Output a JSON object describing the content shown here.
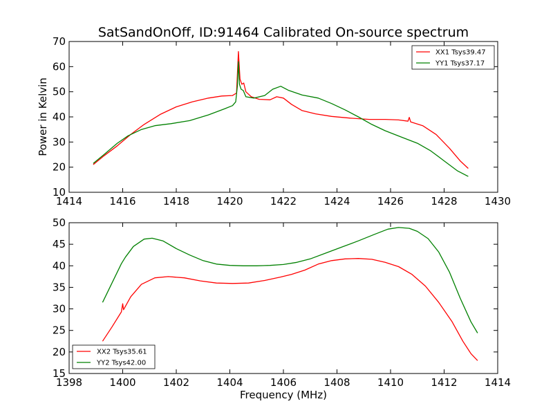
{
  "figure": {
    "title": "SatSandOnOff, ID:91464 Calibrated On-source spectrum"
  },
  "colors": {
    "red": "#ff0000",
    "green": "#008000"
  },
  "chart_data": [
    {
      "type": "line",
      "xlabel": "",
      "ylabel": "Power in Kelvin",
      "xlim": [
        1414,
        1430
      ],
      "ylim": [
        10,
        70
      ],
      "xticks": [
        1414,
        1416,
        1418,
        1420,
        1422,
        1424,
        1426,
        1428,
        1430
      ],
      "yticks": [
        10,
        20,
        30,
        40,
        50,
        60,
        70
      ],
      "legend_position": "top-right",
      "series": [
        {
          "name": "XX1 Tsys39.47",
          "color": "#ff0000",
          "points": [
            [
              1414.9,
              21
            ],
            [
              1415.3,
              24.5
            ],
            [
              1415.8,
              28.5
            ],
            [
              1416.3,
              33
            ],
            [
              1416.8,
              37
            ],
            [
              1417.4,
              41
            ],
            [
              1418.0,
              44
            ],
            [
              1418.6,
              46
            ],
            [
              1419.2,
              47.5
            ],
            [
              1419.7,
              48.3
            ],
            [
              1420.1,
              48.5
            ],
            [
              1420.25,
              49.5
            ],
            [
              1420.32,
              66
            ],
            [
              1420.38,
              55
            ],
            [
              1420.45,
              53
            ],
            [
              1420.52,
              53.5
            ],
            [
              1420.6,
              50
            ],
            [
              1420.8,
              48
            ],
            [
              1421.1,
              47
            ],
            [
              1421.5,
              46.8
            ],
            [
              1421.75,
              48
            ],
            [
              1422.0,
              47.5
            ],
            [
              1422.3,
              45
            ],
            [
              1422.7,
              42.5
            ],
            [
              1423.2,
              41.2
            ],
            [
              1423.8,
              40.2
            ],
            [
              1424.5,
              39.5
            ],
            [
              1425.2,
              39.0
            ],
            [
              1425.8,
              39.0
            ],
            [
              1426.3,
              38.8
            ],
            [
              1426.65,
              38.3
            ],
            [
              1426.7,
              39.8
            ],
            [
              1426.75,
              38
            ],
            [
              1427.2,
              36.5
            ],
            [
              1427.7,
              33
            ],
            [
              1428.2,
              27.5
            ],
            [
              1428.6,
              22.5
            ],
            [
              1428.9,
              19.5
            ]
          ]
        },
        {
          "name": "YY1 Tsys37.17",
          "color": "#008000",
          "points": [
            [
              1414.9,
              21.5
            ],
            [
              1415.3,
              25
            ],
            [
              1415.8,
              29.5
            ],
            [
              1416.2,
              32.5
            ],
            [
              1416.7,
              35
            ],
            [
              1417.2,
              36.5
            ],
            [
              1417.8,
              37.3
            ],
            [
              1418.5,
              38.5
            ],
            [
              1419.2,
              40.8
            ],
            [
              1419.8,
              43.2
            ],
            [
              1420.1,
              44.5
            ],
            [
              1420.22,
              46
            ],
            [
              1420.28,
              52
            ],
            [
              1420.32,
              62
            ],
            [
              1420.36,
              53
            ],
            [
              1420.42,
              51
            ],
            [
              1420.5,
              50.5
            ],
            [
              1420.6,
              48
            ],
            [
              1420.9,
              47.5
            ],
            [
              1421.3,
              48.5
            ],
            [
              1421.6,
              51
            ],
            [
              1421.9,
              52.2
            ],
            [
              1422.2,
              50.5
            ],
            [
              1422.7,
              48.7
            ],
            [
              1423.3,
              47.5
            ],
            [
              1423.8,
              45.3
            ],
            [
              1424.3,
              42.8
            ],
            [
              1424.8,
              40
            ],
            [
              1425.3,
              37
            ],
            [
              1425.8,
              34.5
            ],
            [
              1426.4,
              32
            ],
            [
              1427.0,
              29.5
            ],
            [
              1427.5,
              26.5
            ],
            [
              1428.0,
              22.5
            ],
            [
              1428.5,
              18.5
            ],
            [
              1428.9,
              16.3
            ]
          ]
        }
      ]
    },
    {
      "type": "line",
      "xlabel": "Frequency (MHz)",
      "ylabel": "",
      "xlim": [
        1398,
        1414
      ],
      "ylim": [
        15,
        50
      ],
      "xticks": [
        1398,
        1400,
        1402,
        1404,
        1406,
        1408,
        1410,
        1412,
        1414
      ],
      "yticks": [
        15,
        20,
        25,
        30,
        35,
        40,
        45,
        50
      ],
      "legend_position": "bottom-left",
      "series": [
        {
          "name": "XX2 Tsys35.61",
          "color": "#ff0000",
          "points": [
            [
              1399.25,
              22.5
            ],
            [
              1399.6,
              25.8
            ],
            [
              1399.95,
              29.3
            ],
            [
              1400.0,
              31.2
            ],
            [
              1400.03,
              29.8
            ],
            [
              1400.3,
              32.8
            ],
            [
              1400.7,
              35.7
            ],
            [
              1401.2,
              37.2
            ],
            [
              1401.7,
              37.5
            ],
            [
              1402.3,
              37.2
            ],
            [
              1402.9,
              36.5
            ],
            [
              1403.5,
              36
            ],
            [
              1404.1,
              35.9
            ],
            [
              1404.7,
              36
            ],
            [
              1405.3,
              36.6
            ],
            [
              1405.9,
              37.4
            ],
            [
              1406.3,
              38
            ],
            [
              1406.8,
              39
            ],
            [
              1407.3,
              40.4
            ],
            [
              1407.8,
              41.2
            ],
            [
              1408.3,
              41.6
            ],
            [
              1408.8,
              41.7
            ],
            [
              1409.3,
              41.5
            ],
            [
              1409.8,
              40.8
            ],
            [
              1410.3,
              39.8
            ],
            [
              1410.8,
              38
            ],
            [
              1411.3,
              35.3
            ],
            [
              1411.8,
              31.5
            ],
            [
              1412.3,
              27
            ],
            [
              1412.7,
              22.5
            ],
            [
              1413.0,
              19.6
            ],
            [
              1413.25,
              18
            ]
          ]
        },
        {
          "name": "YY2 Tsys42.00",
          "color": "#008000",
          "points": [
            [
              1399.25,
              31.5
            ],
            [
              1399.6,
              36
            ],
            [
              1399.95,
              40.5
            ],
            [
              1400.1,
              42
            ],
            [
              1400.4,
              44.5
            ],
            [
              1400.8,
              46.2
            ],
            [
              1401.1,
              46.4
            ],
            [
              1401.5,
              45.8
            ],
            [
              1402.0,
              44
            ],
            [
              1402.5,
              42.5
            ],
            [
              1403.0,
              41.2
            ],
            [
              1403.5,
              40.4
            ],
            [
              1404.0,
              40.1
            ],
            [
              1404.5,
              40
            ],
            [
              1405.0,
              40
            ],
            [
              1405.5,
              40.1
            ],
            [
              1406.0,
              40.3
            ],
            [
              1406.5,
              40.8
            ],
            [
              1407.0,
              41.6
            ],
            [
              1407.6,
              43
            ],
            [
              1408.2,
              44.4
            ],
            [
              1408.8,
              45.8
            ],
            [
              1409.4,
              47.3
            ],
            [
              1409.9,
              48.5
            ],
            [
              1410.3,
              48.9
            ],
            [
              1410.7,
              48.7
            ],
            [
              1411.0,
              48
            ],
            [
              1411.4,
              46.3
            ],
            [
              1411.8,
              43.2
            ],
            [
              1412.2,
              38.5
            ],
            [
              1412.6,
              32.5
            ],
            [
              1413.0,
              27
            ],
            [
              1413.25,
              24.4
            ]
          ]
        }
      ]
    }
  ]
}
